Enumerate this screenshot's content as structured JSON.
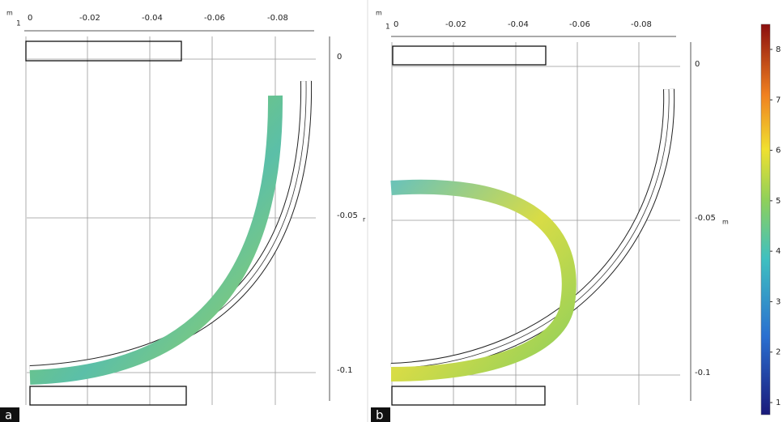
{
  "panels": [
    {
      "label": "a",
      "top_unit": "m",
      "corner": "1",
      "side_unit": "r",
      "x_ticks": [
        0,
        -0.02,
        -0.04,
        -0.06,
        -0.08
      ],
      "y_ticks": [
        0,
        -0.05,
        -0.1
      ]
    },
    {
      "label": "b",
      "top_unit": "m",
      "corner": "1",
      "side_unit": "m",
      "x_ticks": [
        0,
        -0.02,
        -0.04,
        -0.06,
        -0.08
      ],
      "y_ticks": [
        0,
        -0.05,
        -0.1
      ]
    }
  ],
  "colorbar": {
    "ticks": [
      1,
      2,
      3,
      4,
      5,
      6,
      7,
      8
    ]
  }
}
